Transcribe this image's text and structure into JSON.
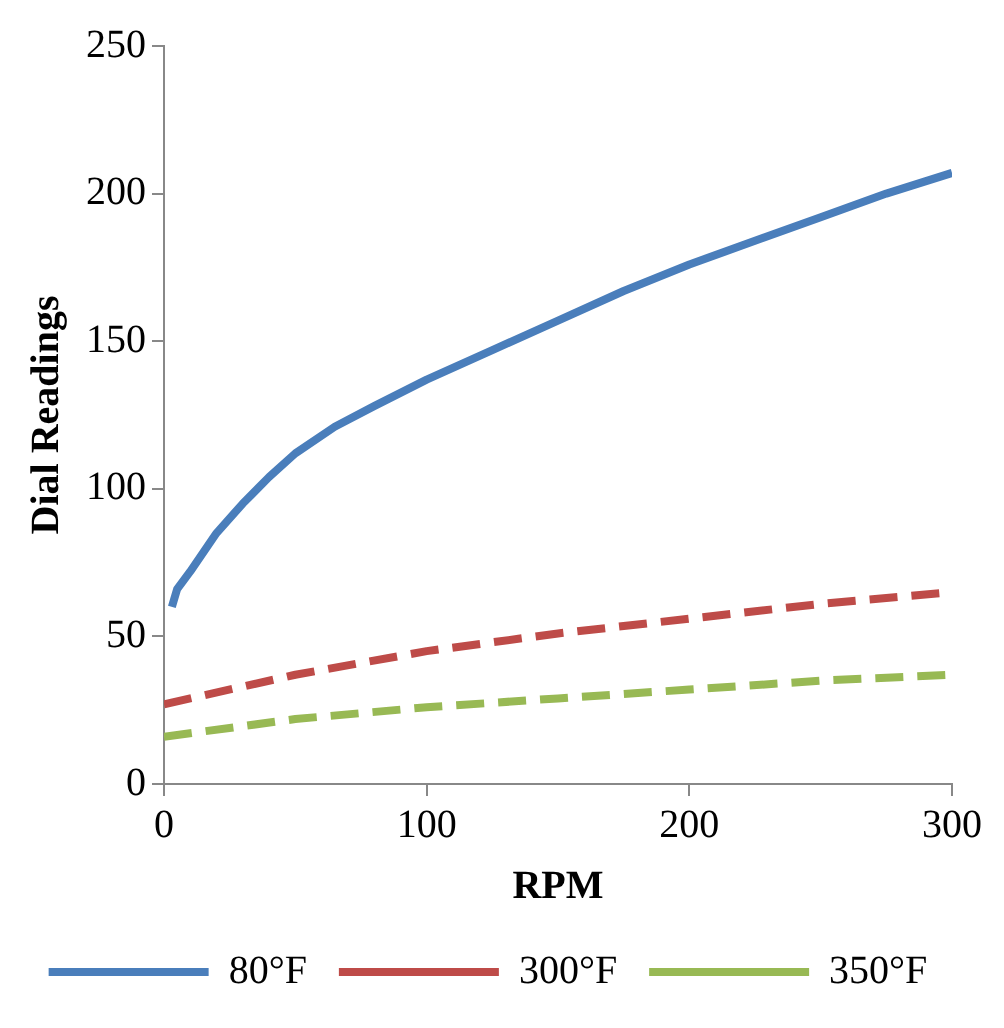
{
  "chart_data": {
    "type": "line",
    "xlabel": "RPM",
    "ylabel": "Dial Readings",
    "xlim": [
      0,
      300
    ],
    "xticks": [
      0,
      100,
      200,
      300
    ],
    "ylim": [
      0,
      250
    ],
    "yticks": [
      0,
      50,
      100,
      150,
      200,
      250
    ],
    "grid": false,
    "legend": "bottom",
    "marker": "none",
    "series": [
      {
        "name": "80°F",
        "color": "#4a7ebb",
        "line_style": "solid",
        "x": [
          3,
          5,
          10,
          20,
          30,
          40,
          50,
          65,
          80,
          100,
          125,
          150,
          175,
          200,
          225,
          250,
          275,
          300
        ],
        "values": [
          60,
          66,
          72,
          85,
          95,
          104,
          112,
          121,
          128,
          137,
          147,
          157,
          167,
          176,
          184,
          192,
          200,
          207
        ]
      },
      {
        "name": "300°F",
        "color": "#be4b48",
        "line_style": "dashed",
        "x": [
          0,
          50,
          100,
          150,
          200,
          250,
          300
        ],
        "values": [
          27,
          37,
          45,
          51,
          56,
          61,
          65
        ]
      },
      {
        "name": "350°F",
        "color": "#98b954",
        "line_style": "dashed",
        "x": [
          0,
          50,
          100,
          150,
          200,
          250,
          300
        ],
        "values": [
          16,
          22,
          26,
          29,
          32,
          35,
          37
        ]
      }
    ]
  }
}
